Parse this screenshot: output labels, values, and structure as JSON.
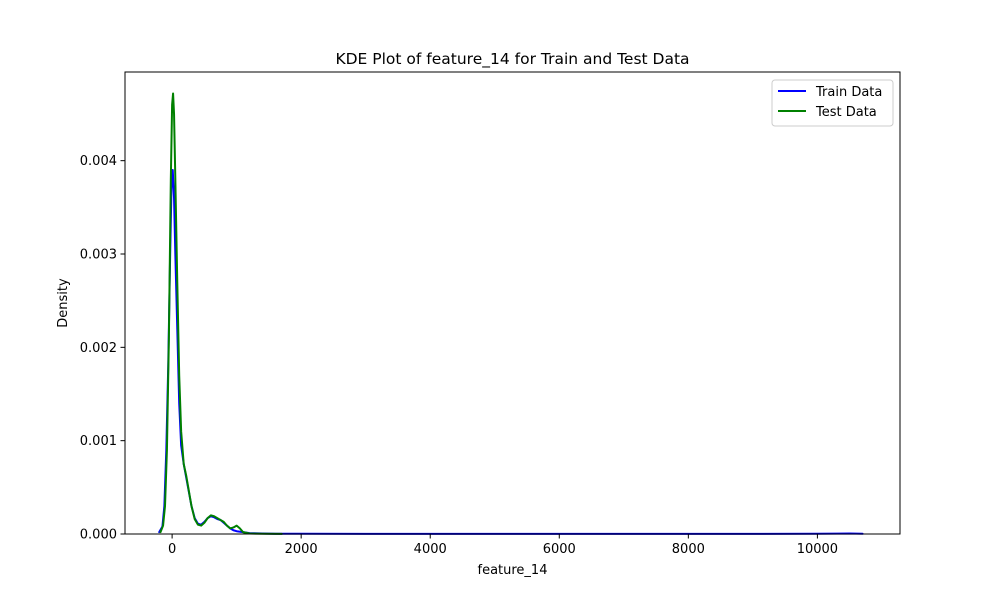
{
  "chart_data": {
    "type": "line",
    "title": "KDE Plot of feature_14 for Train and Test Data",
    "xlabel": "feature_14",
    "ylabel": "Density",
    "xlim": [
      -730,
      11280
    ],
    "ylim": [
      0,
      0.00495
    ],
    "xticks": [
      0,
      2000,
      4000,
      6000,
      8000,
      10000
    ],
    "xtick_labels": [
      "0",
      "2000",
      "4000",
      "6000",
      "8000",
      "10000"
    ],
    "yticks": [
      0,
      0.001,
      0.002,
      0.003,
      0.004
    ],
    "ytick_labels": [
      "0.000",
      "0.001",
      "0.002",
      "0.003",
      "0.004"
    ],
    "grid": false,
    "legend_position": "top-right",
    "series": [
      {
        "name": "Train Data",
        "color": "#0000ff",
        "x": [
          -200,
          -150,
          -120,
          -90,
          -60,
          -30,
          -10,
          0,
          10,
          30,
          50,
          80,
          110,
          140,
          180,
          220,
          260,
          300,
          350,
          400,
          450,
          500,
          550,
          600,
          650,
          700,
          750,
          800,
          850,
          900,
          950,
          1000,
          1100,
          1200,
          1400,
          1600,
          2000,
          3000,
          4000,
          5000,
          6000,
          7000,
          8000,
          9000,
          10000,
          10300,
          10500,
          10700
        ],
        "y": [
          2e-05,
          8e-05,
          0.0003,
          0.0009,
          0.0018,
          0.003,
          0.0037,
          0.00388,
          0.0039,
          0.0036,
          0.003,
          0.0022,
          0.0014,
          0.00095,
          0.00075,
          0.0006,
          0.00045,
          0.0003,
          0.00017,
          0.00011,
          0.0001,
          0.00013,
          0.00017,
          0.00019,
          0.00018,
          0.00016,
          0.00015,
          0.00012,
          9e-05,
          6e-05,
          4e-05,
          3e-05,
          2e-05,
          1e-05,
          5e-06,
          3e-06,
          2e-06,
          1e-06,
          1e-06,
          1e-06,
          1e-06,
          1e-06,
          1e-06,
          1e-06,
          2e-06,
          4e-06,
          5e-06,
          2e-06
        ]
      },
      {
        "name": "Test Data",
        "color": "#008000",
        "x": [
          -180,
          -140,
          -110,
          -80,
          -50,
          -20,
          0,
          15,
          30,
          50,
          80,
          110,
          140,
          180,
          220,
          260,
          300,
          350,
          400,
          450,
          500,
          550,
          600,
          650,
          700,
          750,
          800,
          850,
          900,
          950,
          1000,
          1050,
          1100,
          1200,
          1400,
          1700
        ],
        "y": [
          2e-05,
          9e-05,
          0.0003,
          0.0009,
          0.0021,
          0.0038,
          0.0046,
          0.00472,
          0.0045,
          0.0038,
          0.0027,
          0.0017,
          0.0011,
          0.00075,
          0.00062,
          0.00046,
          0.0003,
          0.00016,
          0.0001,
          9e-05,
          0.00012,
          0.00017,
          0.0002,
          0.00019,
          0.00017,
          0.00015,
          0.00013,
          9e-05,
          6e-05,
          7e-05,
          9e-05,
          6e-05,
          2e-05,
          5e-06,
          2e-06,
          1e-06
        ]
      }
    ]
  }
}
